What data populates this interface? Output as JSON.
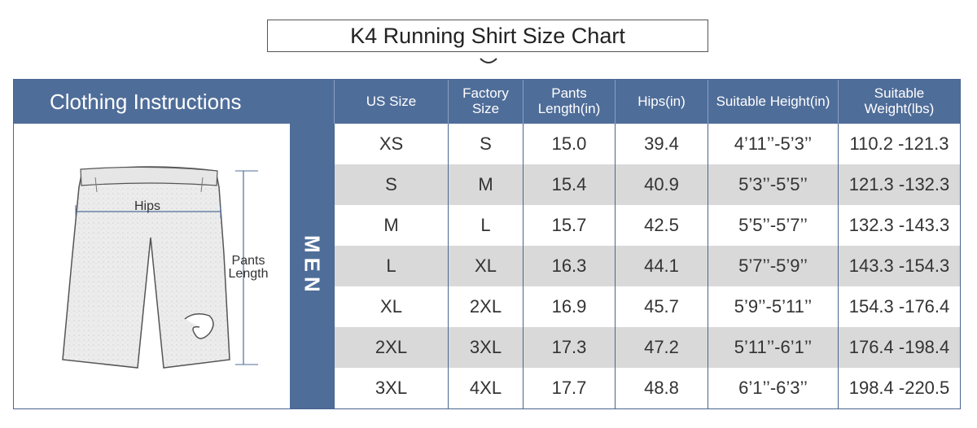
{
  "title": "K4 Running Shirt Size Chart",
  "header": {
    "left": "Clothing Instructions",
    "columns": [
      "US Size",
      "Factory Size",
      "Pants Length(in)",
      "Hips(in)",
      "Suitable Height(in)",
      "Suitable Weight(lbs)"
    ]
  },
  "side_label": "MEN",
  "diagram": {
    "hips_label": "Hips",
    "length_label_1": "Pants",
    "length_label_2": "Length"
  },
  "rows": [
    [
      "XS",
      "S",
      "15.0",
      "39.4",
      "4’11’’-5’3’’",
      "110.2 -121.3"
    ],
    [
      "S",
      "M",
      "15.4",
      "40.9",
      "5’3’’-5’5’’",
      "121.3 -132.3"
    ],
    [
      "M",
      "L",
      "15.7",
      "42.5",
      "5’5’’-5’7’’",
      "132.3 -143.3"
    ],
    [
      "L",
      "XL",
      "16.3",
      "44.1",
      "5’7’’-5’9’’",
      "143.3 -154.3"
    ],
    [
      "XL",
      "2XL",
      "16.9",
      "45.7",
      "5’9’’-5’11’’",
      "154.3 -176.4"
    ],
    [
      "2XL",
      "3XL",
      "17.3",
      "47.2",
      "5’11’’-6’1’’",
      "176.4 -198.4"
    ],
    [
      "3XL",
      "4XL",
      "17.7",
      "48.8",
      "6’1’’-6’3’’",
      "198.4 -220.5"
    ]
  ],
  "colors": {
    "header_bg": "#4f6d99",
    "row_shade": "#d9d9d9"
  }
}
